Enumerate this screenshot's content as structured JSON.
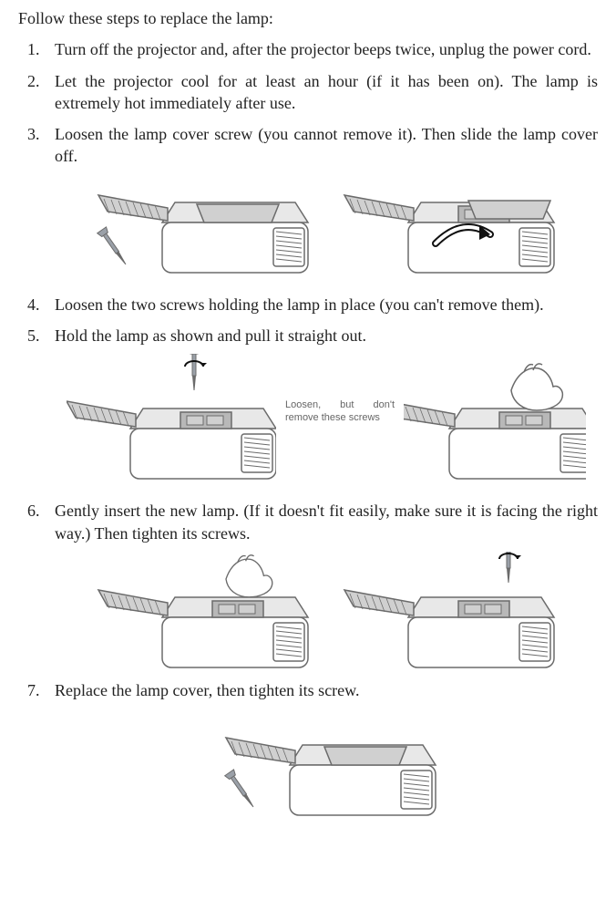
{
  "intro": "Follow these steps to replace the lamp:",
  "steps": [
    {
      "text": "Turn off the projector and, after the projector beeps twice, unplug the power cord."
    },
    {
      "text": "Let the projector cool for at least an hour (if it has been on). The lamp is extremely hot immediately after use."
    },
    {
      "text": "Loosen the lamp cover screw (you cannot remove it). Then slide the lamp cover off."
    },
    {
      "text": "Loosen the two screws holding the lamp in place (you can't remove them)."
    },
    {
      "text": "Hold the lamp as shown and pull it straight out."
    },
    {
      "text": "Gently insert the new lamp. (If it doesn't fit easily, make sure it is facing the right way.) Then tighten its screws."
    },
    {
      "text": "Replace the lamp cover, then tighten its screw."
    }
  ],
  "figure_caption": "Loosen, but don't remove these screws",
  "colors": {
    "text": "#222222",
    "caption": "#666666",
    "stroke": "#6b6b6b",
    "fill_light": "#e8e8e8",
    "fill_mid": "#d0d0d0",
    "fill_dark": "#b8b8b8",
    "arrow": "#111111",
    "screwdriver": "#9aa0a8",
    "background": "#ffffff"
  },
  "svg": {
    "projector_w": 230,
    "projector_h": 120,
    "stroke_w": 1.5
  }
}
